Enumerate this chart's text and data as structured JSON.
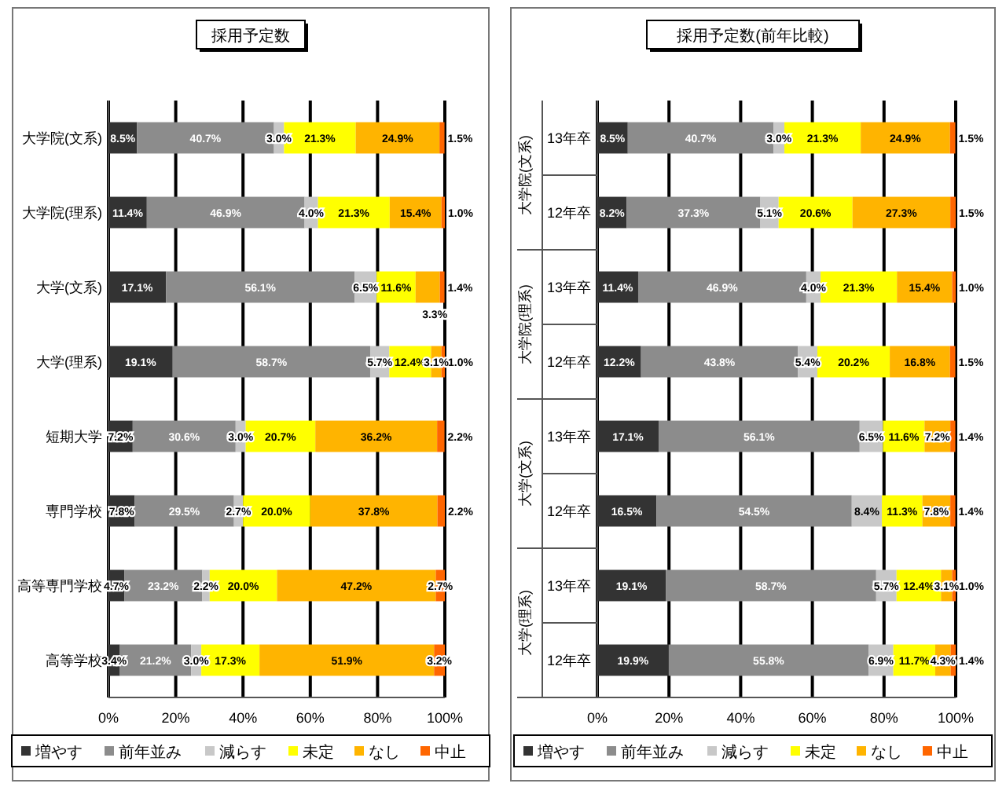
{
  "chart_data": [
    {
      "type": "bar",
      "orientation": "horizontal",
      "stacked": true,
      "title": "採用予定数",
      "categories": [
        "大学院(文系)",
        "大学院(理系)",
        "大学(文系)",
        "大学(理系)",
        "短期大学",
        "専門学校",
        "高等専門学校",
        "高等学校"
      ],
      "series": [
        {
          "name": "増やす",
          "color": "#333333",
          "values": [
            8.5,
            11.4,
            17.1,
            19.1,
            7.2,
            7.8,
            4.7,
            3.4
          ],
          "value_labels": [
            "8.5%",
            "11.4%",
            "17.1%",
            "19.1%",
            "7.2%",
            "7.8%",
            "4.7%",
            "3.4%"
          ]
        },
        {
          "name": "前年並み",
          "color": "#8c8c8c",
          "values": [
            40.7,
            46.9,
            56.1,
            58.7,
            30.6,
            29.5,
            23.2,
            21.2
          ],
          "value_labels": [
            "40.7%",
            "46.9%",
            "56.1%",
            "58.7%",
            "30.6%",
            "29.5%",
            "23.2%",
            "21.2%"
          ]
        },
        {
          "name": "減らす",
          "color": "#c8c8c8",
          "values": [
            3.0,
            4.0,
            6.5,
            5.7,
            3.0,
            2.7,
            2.2,
            3.0
          ],
          "value_labels": [
            "3.0%",
            "4.0%",
            "6.5%",
            "5.7%",
            "3.0%",
            "2.7%",
            "2.2%",
            "3.0%"
          ]
        },
        {
          "name": "未定",
          "color": "#ffff00",
          "values": [
            21.3,
            21.3,
            11.6,
            12.4,
            20.7,
            20.0,
            20.0,
            17.3
          ],
          "value_labels": [
            "21.3%",
            "21.3%",
            "11.6%",
            "12.4%",
            "20.7%",
            "20.0%",
            "20.0%",
            "17.3%"
          ]
        },
        {
          "name": "なし",
          "color": "#ffb400",
          "values": [
            24.9,
            15.4,
            7.2,
            3.1,
            36.2,
            37.8,
            47.2,
            51.9
          ],
          "value_labels": [
            "24.9%",
            "15.4%",
            null,
            "3.1%",
            "36.2%",
            "37.8%",
            "47.2%",
            "51.9%"
          ]
        },
        {
          "name": "中止",
          "color": "#ff6600",
          "values": [
            1.5,
            1.0,
            1.4,
            1.0,
            2.2,
            2.2,
            2.7,
            3.2
          ],
          "value_labels": [
            "1.5%",
            "1.0%",
            "1.4%",
            "1.0%",
            "2.2%",
            "2.2%",
            "2.7%",
            "3.2%"
          ]
        }
      ],
      "annotations": [
        {
          "text": "3.3%",
          "x": 97,
          "y": "大学(文系)"
        }
      ],
      "xlim": [
        0,
        100
      ],
      "xticks": [
        {
          "value": 0,
          "label": "0%"
        },
        {
          "value": 20,
          "label": "20%"
        },
        {
          "value": 40,
          "label": "40%"
        },
        {
          "value": 60,
          "label": "60%"
        },
        {
          "value": 80,
          "label": "80%"
        },
        {
          "value": 100,
          "label": "100%"
        }
      ],
      "grid": "x",
      "legend": "bottom"
    },
    {
      "type": "bar",
      "orientation": "horizontal",
      "stacked": true,
      "title": "採用予定数(前年比較)",
      "categories": [
        "13年卒",
        "12年卒",
        "13年卒",
        "12年卒",
        "13年卒",
        "12年卒",
        "13年卒",
        "12年卒"
      ],
      "series": [
        {
          "name": "増やす",
          "color": "#333333",
          "values": [
            8.5,
            8.2,
            11.4,
            12.2,
            17.1,
            16.5,
            19.1,
            19.9
          ],
          "value_labels": [
            "8.5%",
            "8.2%",
            "11.4%",
            "12.2%",
            "17.1%",
            "16.5%",
            "19.1%",
            "19.9%"
          ]
        },
        {
          "name": "前年並み",
          "color": "#8c8c8c",
          "values": [
            40.7,
            37.3,
            46.9,
            43.8,
            56.1,
            54.5,
            58.7,
            55.8
          ],
          "value_labels": [
            "40.7%",
            "37.3%",
            "46.9%",
            "43.8%",
            "56.1%",
            "54.5%",
            "58.7%",
            "55.8%"
          ]
        },
        {
          "name": "減らす",
          "color": "#c8c8c8",
          "values": [
            3.0,
            5.1,
            4.0,
            5.4,
            6.5,
            8.4,
            5.7,
            6.9
          ],
          "value_labels": [
            "3.0%",
            "5.1%",
            "4.0%",
            "5.4%",
            "6.5%",
            "8.4%",
            "5.7%",
            "6.9%"
          ]
        },
        {
          "name": "未定",
          "color": "#ffff00",
          "values": [
            21.3,
            20.6,
            21.3,
            20.2,
            11.6,
            11.3,
            12.4,
            11.7
          ],
          "value_labels": [
            "21.3%",
            "20.6%",
            "21.3%",
            "20.2%",
            "11.6%",
            "11.3%",
            "12.4%",
            "11.7%"
          ]
        },
        {
          "name": "なし",
          "color": "#ffb400",
          "values": [
            24.9,
            27.3,
            15.4,
            16.8,
            7.2,
            7.8,
            3.1,
            4.3
          ],
          "value_labels": [
            "24.9%",
            "27.3%",
            "15.4%",
            "16.8%",
            "7.2%",
            "7.8%",
            "3.1%",
            "4.3%"
          ]
        },
        {
          "name": "中止",
          "color": "#ff6600",
          "values": [
            1.5,
            1.5,
            1.0,
            1.5,
            1.4,
            1.4,
            1.0,
            1.4
          ],
          "value_labels": [
            "1.5%",
            "1.5%",
            "1.0%",
            "1.5%",
            "1.4%",
            "1.4%",
            "1.0%",
            "1.4%"
          ]
        }
      ],
      "annotations": [
        "大学院(文系)",
        "大学院(理系)",
        "大学(文系)",
        "大学(理系)"
      ],
      "xlim": [
        0,
        100
      ],
      "xticks": [
        {
          "value": 0,
          "label": "0%"
        },
        {
          "value": 20,
          "label": "20%"
        },
        {
          "value": 40,
          "label": "40%"
        },
        {
          "value": 60,
          "label": "60%"
        },
        {
          "value": 80,
          "label": "80%"
        },
        {
          "value": 100,
          "label": "100%"
        }
      ],
      "grid": "x",
      "legend": "bottom"
    }
  ]
}
